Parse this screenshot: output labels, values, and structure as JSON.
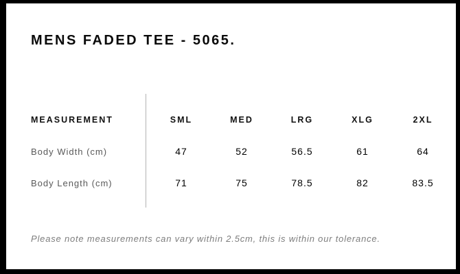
{
  "page": {
    "title": "MENS FADED TEE - 5065."
  },
  "table": {
    "header": {
      "measurement": "MEASUREMENT",
      "sizes": [
        "SML",
        "MED",
        "LRG",
        "XLG",
        "2XL"
      ]
    },
    "rows": [
      {
        "label": "Body Width (cm)",
        "values": [
          "47",
          "52",
          "56.5",
          "61",
          "64"
        ]
      },
      {
        "label": "Body Length (cm)",
        "values": [
          "71",
          "75",
          "78.5",
          "82",
          "83.5"
        ]
      }
    ]
  },
  "footnote": "Please note measurements can vary within 2.5cm, this is within our tolerance.",
  "colors": {
    "frame": "#000000",
    "background": "#ffffff",
    "text_primary": "#111111",
    "row_label": "#595959",
    "footnote": "#7d7d7d",
    "divider": "#b3b3b3"
  },
  "chart_data": {
    "type": "table",
    "title": "MENS FADED TEE - 5065.",
    "columns": [
      "MEASUREMENT",
      "SML",
      "MED",
      "LRG",
      "XLG",
      "2XL"
    ],
    "rows": [
      [
        "Body Width (cm)",
        47,
        52,
        56.5,
        61,
        64
      ],
      [
        "Body Length (cm)",
        71,
        75,
        78.5,
        82,
        83.5
      ]
    ],
    "note": "Please note measurements can vary within 2.5cm, this is within our tolerance."
  }
}
